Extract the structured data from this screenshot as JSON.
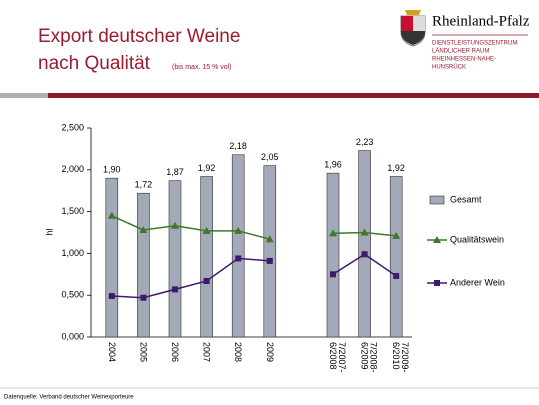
{
  "header": {
    "title_lines": [
      "Export deutscher Weine",
      "nach Qualität"
    ],
    "note": "(bis max. 15 % vol)"
  },
  "logo": {
    "name": "Rheinland-Pfalz",
    "lines": [
      "DIENSTLEISTUNGSZENTRUM",
      "LÄNDLICHER RAUM",
      "RHEINHESSEN-NAHE-",
      "HUNSRÜCK"
    ]
  },
  "footer": "Datenquelle: Verband deutscher Weinexporteure",
  "chart_data": {
    "type": "bar",
    "y_label": "hl",
    "categories": [
      "2004",
      "2005",
      "2006",
      "2007",
      "2008",
      "2009",
      null,
      "7/2007-6/2008",
      "7/2008-6/2009",
      "7/2009-6/2010"
    ],
    "series": [
      {
        "name": "Gesamt",
        "type": "bar",
        "color": "#a3a9b8",
        "values": [
          1.9,
          1.72,
          1.87,
          1.92,
          2.18,
          2.05,
          null,
          1.96,
          2.23,
          1.92
        ],
        "value_labels": [
          "1,90",
          "1,72",
          "1,87",
          "1,92",
          "2,18",
          "2,05",
          null,
          "1,96",
          "2,23",
          "1,92"
        ]
      },
      {
        "name": "Qualitätswein",
        "type": "line",
        "color": "#3a7a2a",
        "values": [
          1.45,
          1.28,
          1.33,
          1.27,
          1.27,
          1.17,
          null,
          1.24,
          1.25,
          1.21
        ]
      },
      {
        "name": "Anderer Wein",
        "type": "line",
        "color": "#3c1a6e",
        "values": [
          0.49,
          0.47,
          0.57,
          0.67,
          0.94,
          0.91,
          null,
          0.75,
          0.99,
          0.73
        ]
      }
    ],
    "ylim": [
      0,
      2.5
    ],
    "yticks": [
      {
        "value": 0,
        "label": "0,000"
      },
      {
        "value": 0.5,
        "label": "0,500"
      },
      {
        "value": 1,
        "label": "1,000"
      },
      {
        "value": 1.5,
        "label": "1,500"
      },
      {
        "value": 2,
        "label": "2,000"
      },
      {
        "value": 2.5,
        "label": "2,500"
      }
    ],
    "legend": "right"
  }
}
